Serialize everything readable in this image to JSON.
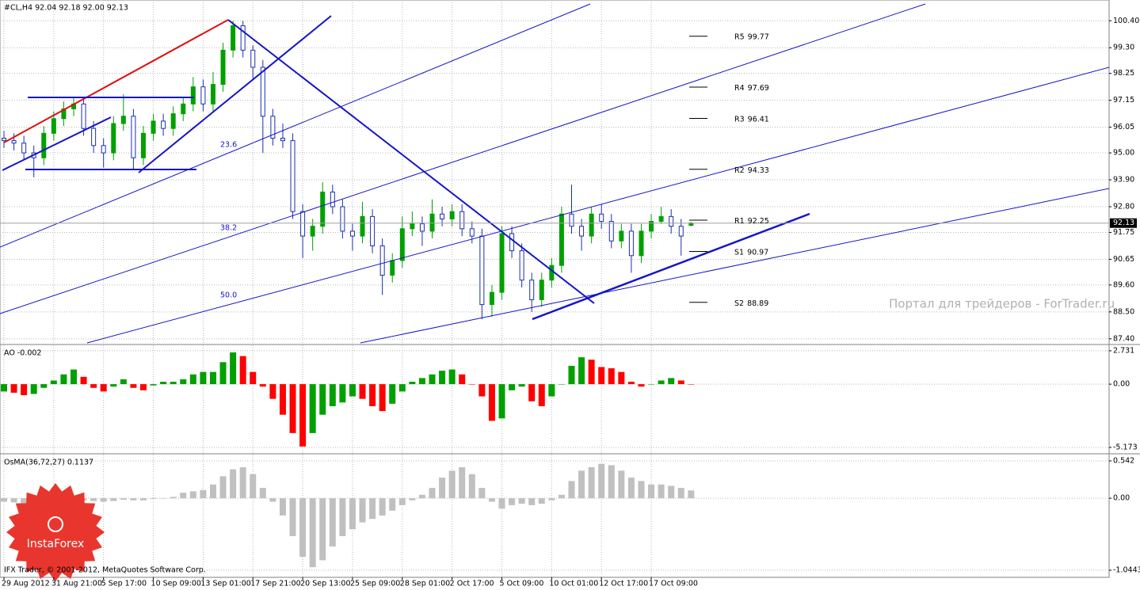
{
  "header": "#CL,H4 92.04 92.18 92.00 92.13",
  "footer": "IFX Trader, © 2001-2012, MetaQuotes Software Corp.",
  "logo": "InstaForex",
  "watermark": "Портал для трейдеров - ForTrader.ru",
  "chart_data": [
    {
      "type": "candlestick",
      "categories": [
        "29 Aug 2012",
        null,
        null,
        null,
        null,
        "31 Aug 21:00",
        null,
        null,
        null,
        null,
        "5 Sep 17:00",
        null,
        null,
        null,
        null,
        "10 Sep 09:00",
        null,
        null,
        null,
        null,
        "13 Sep 01:00",
        null,
        null,
        null,
        null,
        "17 Sep 21:00",
        null,
        null,
        null,
        null,
        "20 Sep 13:00",
        null,
        null,
        null,
        null,
        "25 Sep 09:00",
        null,
        null,
        null,
        null,
        "28 Sep 01:00",
        null,
        null,
        null,
        null,
        "2 Oct 17:00",
        null,
        null,
        null,
        null,
        "5 Oct 09:00",
        null,
        null,
        null,
        null,
        "10 Oct 01:00",
        null,
        null,
        null,
        null,
        "12 Oct 17:00",
        null,
        null,
        null,
        null,
        "17 Oct 09:00",
        null,
        null,
        null,
        null
      ],
      "open": [
        95.6,
        95.5,
        95.4,
        95.0,
        94.8,
        95.8,
        96.4,
        96.8,
        97.0,
        96.0,
        95.3,
        95.0,
        96.2,
        96.5,
        94.8,
        95.8,
        96.3,
        96.0,
        96.6,
        97.0,
        97.7,
        97.0,
        97.8,
        99.2,
        100.2,
        99.2,
        98.5,
        96.5,
        95.6,
        95.5,
        92.6,
        91.6,
        92.0,
        93.4,
        92.8,
        91.8,
        91.6,
        92.4,
        91.2,
        90.0,
        90.6,
        91.9,
        92.1,
        91.8,
        92.5,
        92.3,
        92.6,
        91.9,
        91.6,
        88.8,
        89.3,
        91.7,
        91.0,
        89.8,
        89.0,
        89.8,
        90.4,
        92.5,
        92.0,
        91.6,
        92.5,
        92.2,
        91.4,
        91.8,
        90.8,
        91.8,
        92.2,
        92.4,
        92.0,
        92.04
      ],
      "high": [
        95.9,
        95.8,
        95.7,
        95.3,
        96.1,
        96.7,
        97.1,
        97.3,
        97.3,
        96.3,
        95.6,
        96.5,
        97.4,
        96.8,
        96.1,
        96.6,
        96.6,
        96.9,
        97.3,
        98.1,
        98.0,
        98.3,
        99.5,
        100.4,
        100.4,
        99.4,
        98.8,
        96.8,
        96.2,
        95.8,
        92.9,
        92.3,
        93.8,
        93.7,
        93.1,
        92.1,
        93.0,
        92.7,
        91.5,
        90.9,
        92.4,
        92.6,
        92.4,
        93.1,
        92.8,
        92.9,
        92.9,
        92.2,
        91.9,
        89.6,
        92.0,
        92.0,
        91.3,
        90.1,
        90.1,
        90.7,
        92.8,
        93.7,
        92.3,
        92.8,
        92.9,
        92.5,
        92.1,
        92.1,
        92.1,
        92.5,
        92.8,
        92.7,
        92.3,
        92.18
      ],
      "low": [
        95.2,
        95.1,
        94.7,
        94.0,
        94.5,
        95.5,
        96.1,
        96.5,
        95.7,
        95.0,
        94.4,
        94.7,
        95.9,
        94.3,
        94.5,
        95.5,
        95.7,
        95.7,
        96.3,
        96.7,
        96.7,
        96.7,
        97.5,
        98.9,
        98.9,
        98.0,
        95.0,
        95.3,
        95.2,
        92.3,
        90.7,
        91.0,
        91.7,
        92.5,
        91.5,
        91.0,
        91.3,
        90.9,
        89.2,
        89.7,
        90.3,
        91.6,
        91.2,
        91.5,
        92.0,
        92.0,
        91.6,
        91.3,
        88.2,
        88.3,
        89.0,
        90.7,
        89.5,
        88.5,
        88.7,
        89.5,
        90.1,
        91.7,
        91.0,
        91.3,
        91.9,
        91.1,
        91.1,
        90.1,
        90.5,
        91.5,
        92.1,
        91.7,
        90.8,
        92.0
      ],
      "close": [
        95.5,
        95.4,
        95.0,
        94.8,
        95.8,
        96.4,
        96.8,
        97.0,
        96.0,
        95.3,
        95.0,
        96.2,
        96.5,
        94.8,
        95.8,
        96.3,
        96.0,
        96.6,
        97.0,
        97.7,
        97.0,
        97.8,
        99.2,
        100.2,
        99.2,
        98.5,
        96.5,
        95.6,
        95.5,
        92.6,
        91.6,
        92.0,
        93.4,
        92.8,
        91.8,
        91.6,
        92.4,
        91.2,
        90.0,
        90.6,
        91.9,
        92.1,
        91.8,
        92.5,
        92.3,
        92.6,
        91.9,
        91.6,
        88.8,
        89.3,
        91.7,
        91.0,
        89.8,
        89.0,
        89.8,
        90.4,
        92.5,
        92.0,
        91.6,
        92.5,
        92.2,
        91.4,
        91.8,
        90.8,
        91.8,
        92.2,
        92.4,
        92.0,
        91.6,
        92.13
      ],
      "up_color": "#00a000",
      "down_color": "#1c2fb0",
      "ylim": [
        87.2,
        101.25
      ],
      "yticks": [
        {
          "value": 100.4,
          "label": "100.40"
        },
        {
          "value": 99.3,
          "label": "99.30"
        },
        {
          "value": 98.25,
          "label": "98.25"
        },
        {
          "value": 97.15,
          "label": "97.15"
        },
        {
          "value": 96.05,
          "label": "96.05"
        },
        {
          "value": 95.0,
          "label": "95.00"
        },
        {
          "value": 93.9,
          "label": "93.90"
        },
        {
          "value": 92.8,
          "label": "92.80"
        },
        {
          "value": 91.75,
          "label": "91.75"
        },
        {
          "value": 90.65,
          "label": "90.65"
        },
        {
          "value": 89.6,
          "label": "89.60"
        },
        {
          "value": 88.5,
          "label": "88.50"
        },
        {
          "value": 87.4,
          "label": "87.40"
        }
      ],
      "last_price": 92.13,
      "pivots": [
        {
          "name": "R5",
          "value": 99.77
        },
        {
          "name": "R4",
          "value": 97.69
        },
        {
          "name": "R3",
          "value": 96.41
        },
        {
          "name": "R2",
          "value": 94.33
        },
        {
          "name": "R1",
          "value": 92.25
        },
        {
          "name": "S1",
          "value": 90.97
        },
        {
          "name": "S2",
          "value": 88.89
        }
      ],
      "fib_labels": [
        "23.6",
        "38.2",
        "50.0"
      ],
      "grid": true
    },
    {
      "type": "bar",
      "title": "AO -0.002",
      "values": [
        -0.6,
        -0.7,
        -0.9,
        -0.8,
        -0.3,
        0.3,
        0.8,
        1.2,
        0.6,
        -0.3,
        -0.6,
        -0.2,
        0.4,
        -0.3,
        -0.5,
        -0.1,
        0.2,
        0.2,
        0.4,
        0.8,
        1.0,
        1.0,
        1.8,
        2.6,
        2.3,
        1.0,
        -0.2,
        -1.2,
        -2.5,
        -4.0,
        -5.1,
        -4.0,
        -2.5,
        -1.8,
        -1.5,
        -1.0,
        -1.2,
        -1.8,
        -2.2,
        -1.6,
        -0.6,
        0.2,
        0.5,
        0.8,
        1.1,
        1.2,
        0.8,
        0.0,
        -1.0,
        -3.0,
        -2.8,
        -0.5,
        -0.2,
        -1.4,
        -1.8,
        -1.0,
        0.0,
        1.5,
        2.2,
        2.0,
        1.4,
        1.3,
        1.0,
        0.2,
        -0.2,
        0.0,
        0.3,
        0.5,
        0.3,
        -0.002
      ],
      "up_color": "#00a000",
      "down_color": "#ff0000",
      "ylim": [
        -5.63,
        3.18
      ],
      "yticks": [
        2.731,
        {
          "value": 0,
          "label": "0.00"
        },
        -5.173
      ]
    },
    {
      "type": "bar",
      "title": "OsMA(36,72,27) 0.1137",
      "values": [
        -0.05,
        -0.06,
        -0.07,
        -0.08,
        -0.06,
        -0.04,
        -0.02,
        -0.02,
        -0.03,
        -0.04,
        -0.05,
        -0.04,
        -0.02,
        -0.03,
        -0.03,
        -0.01,
        0.0,
        0.02,
        0.08,
        0.1,
        0.12,
        0.2,
        0.32,
        0.42,
        0.45,
        0.35,
        0.15,
        -0.05,
        -0.25,
        -0.55,
        -0.85,
        -1.0,
        -0.9,
        -0.7,
        -0.55,
        -0.45,
        -0.35,
        -0.3,
        -0.25,
        -0.18,
        -0.1,
        -0.03,
        0.05,
        0.15,
        0.3,
        0.4,
        0.45,
        0.35,
        0.15,
        -0.05,
        -0.15,
        -0.1,
        -0.08,
        -0.1,
        -0.08,
        -0.03,
        0.05,
        0.25,
        0.4,
        0.45,
        0.5,
        0.48,
        0.4,
        0.3,
        0.25,
        0.2,
        0.2,
        0.18,
        0.15,
        0.1137
      ],
      "color": "#c0c0c0",
      "ylim": [
        -1.136,
        0.634
      ],
      "yticks": [
        0.542,
        {
          "value": 0,
          "label": "0.00"
        },
        -1.0443
      ]
    }
  ]
}
